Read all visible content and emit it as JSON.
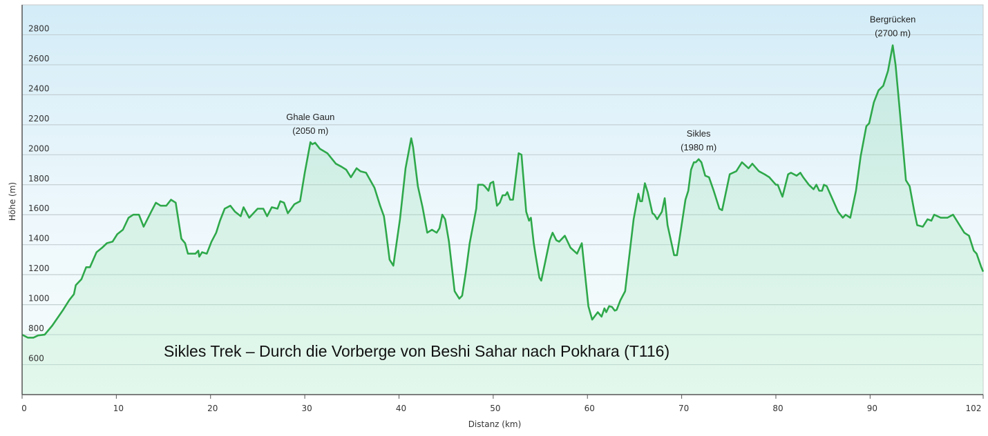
{
  "chart_data": {
    "type": "area",
    "title": "Sikles Trek – Durch die Vorberge von Beshi Sahar nach Pokhara (T116)",
    "xlabel": "Distanz  (km)",
    "ylabel": "Höhe (m)",
    "xlim": [
      0,
      102
    ],
    "ylim": [
      400,
      3000
    ],
    "grid": true,
    "x_ticks": [
      "0",
      "10",
      "20",
      "30",
      "40",
      "50",
      "60",
      "70",
      "80",
      "90",
      "102"
    ],
    "x_tick_values": [
      0,
      10,
      20,
      30,
      40,
      50,
      60,
      70,
      80,
      90,
      102
    ],
    "y_ticks": [
      "600",
      "800",
      "1000",
      "1200",
      "1400",
      "1600",
      "1800",
      "2000",
      "2200",
      "2400",
      "2600",
      "2800"
    ],
    "y_tick_values": [
      600,
      800,
      1000,
      1200,
      1400,
      1600,
      1800,
      2000,
      2200,
      2400,
      2600,
      2800
    ],
    "line_color": "#2ea84a",
    "annotations": [
      {
        "name": "Ghale Gaun",
        "value": "(2050 m)",
        "x": 30.6,
        "y": 2080
      },
      {
        "name": "Sikles",
        "value": "(1980 m)",
        "x": 71.8,
        "y": 1970
      },
      {
        "name": "Bergrücken",
        "value": "(2700 m)",
        "x": 92.4,
        "y": 2730
      }
    ],
    "x": [
      0,
      0.6,
      1.2,
      1.7,
      2.4,
      3.2,
      4.3,
      5.0,
      5.5,
      5.7,
      6.3,
      6.8,
      7.2,
      7.9,
      8.5,
      9.0,
      9.6,
      10.1,
      10.7,
      11.3,
      11.8,
      12.4,
      12.9,
      13.7,
      14.2,
      14.7,
      15.3,
      15.8,
      16.3,
      16.9,
      17.3,
      17.6,
      18.4,
      18.7,
      18.8,
      19.1,
      19.6,
      20.1,
      20.6,
      21.0,
      21.5,
      22.1,
      22.6,
      23.2,
      23.5,
      24.1,
      25.0,
      25.6,
      26.0,
      26.5,
      27.1,
      27.4,
      27.8,
      28.2,
      28.9,
      29.5,
      30.0,
      30.6,
      30.8,
      31.1,
      31.6,
      32.4,
      33.3,
      33.9,
      34.4,
      34.9,
      35.5,
      35.9,
      36.5,
      37.4,
      38.0,
      38.4,
      38.6,
      39.0,
      39.4,
      40.1,
      40.7,
      41.3,
      41.5,
      42.0,
      42.5,
      43.0,
      43.5,
      44.0,
      44.3,
      44.6,
      44.9,
      45.3,
      45.9,
      46.1,
      46.4,
      46.7,
      47.1,
      47.5,
      48.2,
      48.4,
      48.9,
      49.1,
      49.5,
      49.7,
      50.0,
      50.4,
      50.7,
      51.0,
      51.3,
      51.5,
      51.8,
      52.1,
      52.7,
      53.0,
      53.5,
      53.8,
      54.0,
      54.3,
      54.5,
      54.9,
      55.1,
      55.5,
      56.0,
      56.3,
      56.7,
      57.0,
      57.6,
      58.2,
      58.9,
      59.4,
      60.1,
      60.5,
      61.1,
      61.5,
      61.8,
      62.0,
      62.3,
      62.6,
      62.9,
      63.1,
      63.5,
      64.0,
      64.6,
      64.9,
      65.4,
      65.6,
      65.8,
      66.1,
      66.4,
      66.9,
      67.1,
      67.4,
      67.9,
      68.2,
      68.5,
      69.2,
      69.5,
      69.9,
      70.4,
      70.7,
      71.0,
      71.3,
      71.5,
      71.8,
      72.1,
      72.5,
      72.9,
      73.4,
      74.0,
      74.3,
      75.1,
      75.8,
      76.4,
      77.1,
      77.5,
      78.2,
      78.8,
      79.3,
      80.0,
      80.2,
      80.7,
      81.3,
      81.6,
      82.2,
      82.6,
      82.9,
      83.5,
      84.0,
      84.3,
      84.6,
      84.9,
      85.1,
      85.4,
      85.9,
      86.6,
      87.1,
      87.4,
      87.9,
      88.5,
      89.0,
      89.6,
      89.9,
      90.4,
      90.9,
      91.4,
      91.9,
      92.4,
      92.7,
      93.1,
      93.8,
      94.2,
      94.7,
      95.0,
      95.6,
      96.1,
      96.5,
      96.8,
      97.5,
      98.2,
      98.8,
      99.3,
      100.0,
      100.5,
      101.0,
      101.3,
      101.8,
      102.0
    ],
    "y": [
      800,
      780,
      780,
      795,
      800,
      860,
      960,
      1030,
      1070,
      1130,
      1170,
      1250,
      1250,
      1350,
      1380,
      1410,
      1420,
      1470,
      1500,
      1580,
      1600,
      1600,
      1520,
      1620,
      1680,
      1660,
      1660,
      1700,
      1680,
      1440,
      1410,
      1340,
      1340,
      1360,
      1320,
      1350,
      1340,
      1420,
      1480,
      1560,
      1640,
      1660,
      1620,
      1590,
      1650,
      1580,
      1640,
      1640,
      1590,
      1650,
      1640,
      1690,
      1680,
      1610,
      1670,
      1690,
      1880,
      2084,
      2070,
      2080,
      2040,
      2010,
      1940,
      1920,
      1900,
      1850,
      1910,
      1890,
      1880,
      1780,
      1660,
      1590,
      1500,
      1300,
      1260,
      1570,
      1910,
      2110,
      2050,
      1790,
      1650,
      1480,
      1500,
      1480,
      1510,
      1600,
      1570,
      1420,
      1090,
      1070,
      1040,
      1060,
      1220,
      1410,
      1640,
      1800,
      1800,
      1790,
      1760,
      1810,
      1820,
      1660,
      1680,
      1730,
      1730,
      1750,
      1700,
      1700,
      2010,
      2000,
      1620,
      1560,
      1580,
      1410,
      1330,
      1180,
      1160,
      1280,
      1430,
      1480,
      1430,
      1420,
      1460,
      1380,
      1340,
      1410,
      990,
      900,
      950,
      920,
      975,
      950,
      990,
      985,
      960,
      965,
      1030,
      1090,
      1410,
      1570,
      1740,
      1690,
      1690,
      1810,
      1750,
      1610,
      1600,
      1570,
      1620,
      1710,
      1530,
      1330,
      1330,
      1490,
      1700,
      1760,
      1900,
      1950,
      1950,
      1970,
      1950,
      1860,
      1850,
      1760,
      1640,
      1630,
      1870,
      1890,
      1950,
      1910,
      1940,
      1890,
      1870,
      1850,
      1800,
      1800,
      1720,
      1870,
      1880,
      1860,
      1880,
      1850,
      1800,
      1770,
      1800,
      1760,
      1760,
      1800,
      1790,
      1720,
      1620,
      1580,
      1600,
      1580,
      1760,
      1990,
      2190,
      2210,
      2350,
      2430,
      2460,
      2560,
      2730,
      2600,
      2330,
      1830,
      1790,
      1620,
      1530,
      1520,
      1570,
      1560,
      1600,
      1580,
      1580,
      1600,
      1550,
      1480,
      1460,
      1360,
      1340,
      1250,
      1220
    ]
  }
}
